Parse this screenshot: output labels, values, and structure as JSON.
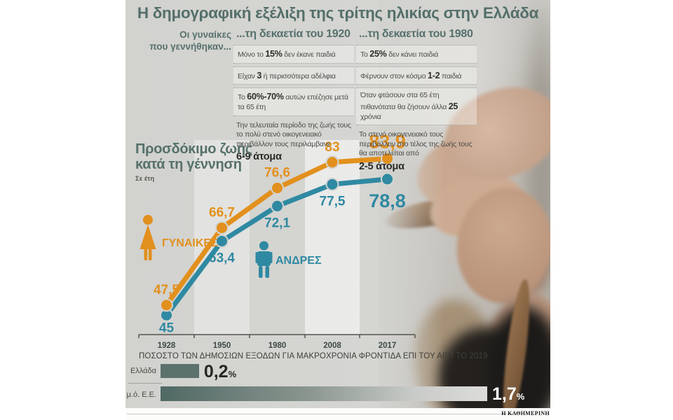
{
  "header": {
    "title": "Η δημογραφική εξέλιξη της τρίτης ηλικίας στην Ελλάδα",
    "intro_line1": "Οι γυναίκες",
    "intro_line2": "που γεννήθηκαν..."
  },
  "columns": [
    {
      "heading": "...τη δεκαετία του 1920",
      "facts": [
        {
          "pre": "Μόνο το ",
          "bold": "15%",
          "post": " δεν έκανε παιδιά"
        },
        {
          "pre": "Είχαν ",
          "bold": "3",
          "post": " ή περισσότερα αδέλφια"
        },
        {
          "pre": "Το ",
          "bold": "60%-70%",
          "post": " αυτών επέζησε μετά τα 65 έτη"
        }
      ],
      "note": {
        "text": "Την τελευταία περίοδο της ζωής τους το πολύ στενό οικογενειακό περιβάλλον τους περιλάμβανε",
        "bold": "6-9 άτομα"
      }
    },
    {
      "heading": "...τη δεκαετία του 1980",
      "facts": [
        {
          "pre": "Το ",
          "bold": "25%",
          "post": " δεν κάνει παιδιά"
        },
        {
          "pre": "Φέρνουν στον κόσμο ",
          "bold": "1-2",
          "post": " παιδιά"
        },
        {
          "pre": "Όταν φτάσουν στα 65 έτη πιθανότατα θα ζήσουν άλλα ",
          "bold": "25",
          "post": " χρόνια"
        }
      ],
      "note": {
        "text": "Το στενό οικογενειακό τους περιβάλλον στο τέλος της ζωής τους θα αποτελείται από",
        "bold": "2-5 άτομα"
      }
    }
  ],
  "chart_data": [
    {
      "type": "line",
      "title": "Προσδόκιμο ζωής κατά τη γέννηση",
      "title_lines": [
        "Προσδόκιμο ζωής",
        "κατά τη γέννηση"
      ],
      "subtitle": "Σε έτη",
      "categories": [
        "1928",
        "1950",
        "1980",
        "2008",
        "2017"
      ],
      "series": [
        {
          "name": "ΓΥΝΑΙΚΕΣ",
          "color": "#e2901d",
          "values": [
            47.5,
            66.7,
            76.6,
            83,
            83.9
          ],
          "labels": [
            "47,5",
            "66,7",
            "76,6",
            "83",
            "83,9"
          ]
        },
        {
          "name": "ΑΝΔΡΕΣ",
          "color": "#2f89a2",
          "values": [
            45,
            63.4,
            72.1,
            77.5,
            78.8
          ],
          "labels": [
            "45",
            "63,4",
            "72,1",
            "77,5",
            "78,8"
          ]
        }
      ],
      "highlight_bands": [
        "1950",
        "2008"
      ],
      "ylim": [
        44,
        86
      ],
      "grid": false,
      "legend_position": "inside-left"
    },
    {
      "type": "bar",
      "title": "ΠΟΣΟΣΤΟ ΤΩΝ ΔΗΜΟΣΙΩΝ ΕΞΟΔΩΝ ΓΙΑ ΜΑΚΡΟΧΡΟΝΙΑ ΦΡΟΝΤΙΔΑ ΕΠΙ ΤΟΥ ΑΕΠ ΤΟ 2019",
      "categories": [
        "Ελλάδα",
        "μ.ό. Ε.Ε."
      ],
      "values": [
        0.2,
        1.7
      ],
      "labels": [
        "0,2",
        "1,7"
      ],
      "unit": "%",
      "xlim": [
        0,
        1.7
      ]
    }
  ],
  "colors": {
    "accent_teal": "#56716c",
    "women_orange": "#e2901d",
    "men_teal": "#2f89a2",
    "bar_dark": "#5b716c"
  },
  "footer": {
    "brand": "Η ΚΑΘΗΜΕΡΙΝΗ"
  }
}
